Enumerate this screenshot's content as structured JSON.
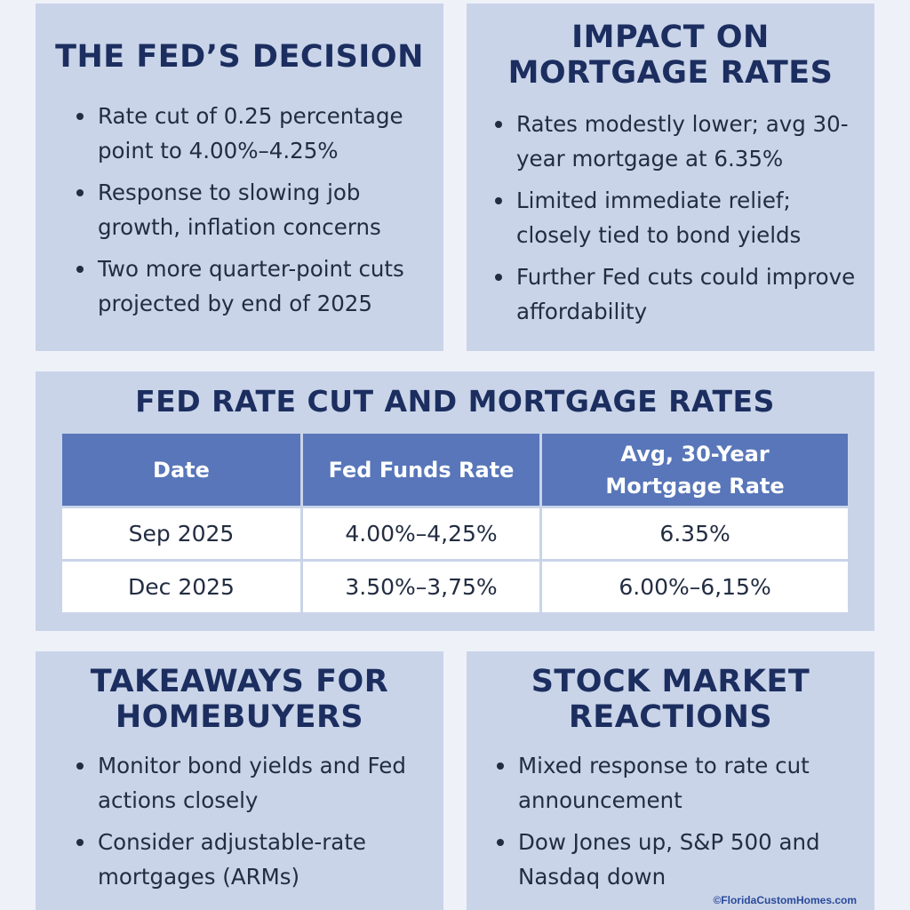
{
  "fed_decision": {
    "title": "THE FED’S DECISION",
    "bullets": [
      "Rate cut of 0.25 percentage point to 4.00%–4.25%",
      "Response to slowing job growth, inflation concerns",
      "Two more quarter-point cuts projected by end of 2025"
    ]
  },
  "mortgage_impact": {
    "title": "IMPACT ON MORTGAGE RATES",
    "bullets": [
      "Rates modestly lower; avg 30-year mortgage at 6.35%",
      "Limited immediate relief; closely tied to bond yields",
      "Further Fed cuts could improve affordability"
    ]
  },
  "rate_table": {
    "title": "FED RATE CUT AND MORTGAGE RATES",
    "headers": [
      "Date",
      "Fed Funds Rate",
      "Avg, 30-Year Mortgage Rate"
    ],
    "rows": [
      [
        "Sep 2025",
        "4.00%–4,25%",
        "6.35%"
      ],
      [
        "Dec 2025",
        "3.50%–3,75%",
        "6.00%–6,15%"
      ]
    ]
  },
  "takeaways": {
    "title": "TAKEAWAYS FOR HOMEBUYERS",
    "bullets": [
      "Monitor bond yields and Fed actions closely",
      "Consider adjustable-rate mortgages (ARMs)"
    ]
  },
  "stock_market": {
    "title": "STOCK MARKET REACTIONS",
    "bullets": [
      "Mixed response to rate cut announcement",
      "Dow Jones up, S&P 500 and Nasdaq down"
    ]
  },
  "watermark": "©FloridaCustomHomes.com",
  "colors": {
    "background": "#eef1f8",
    "panel": "#c9d4e9",
    "title": "#1c2e5f",
    "table_header": "#5876b9"
  }
}
